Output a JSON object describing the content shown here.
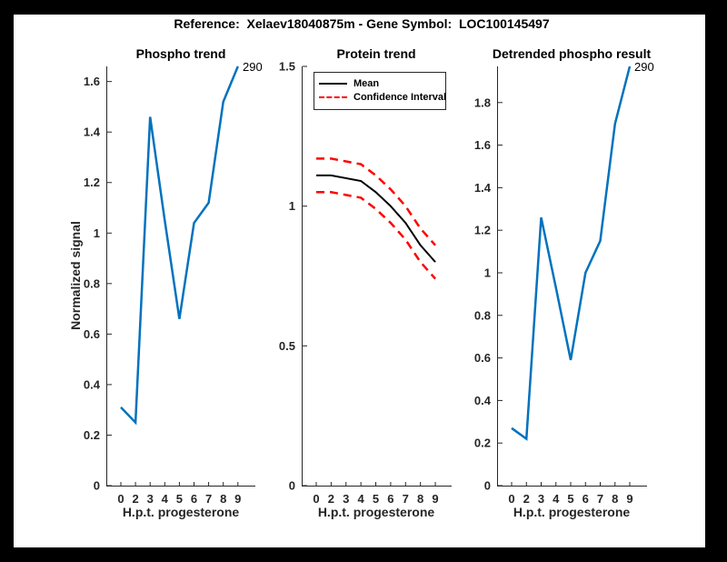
{
  "figure": {
    "title": "Reference:  Xelaev18040875m - Gene Symbol:  LOC100145497"
  },
  "colors": {
    "line_blue": "#0072BD",
    "mean_black": "#000000",
    "ci_red": "#FF0000",
    "axis": "#262626",
    "figure_bg": "#FFFFFF",
    "page_bg": "#000000"
  },
  "chart_data": [
    {
      "type": "line",
      "title": "Phospho trend",
      "xlabel": "H.p.t. progesterone",
      "ylabel": "Normalized signal",
      "x_tick_labels": [
        "0",
        "2",
        "3",
        "4",
        "5",
        "6",
        "7",
        "8",
        "9"
      ],
      "y_tick_values": [
        0,
        0.2,
        0.4,
        0.6,
        0.8,
        1,
        1.2,
        1.4,
        1.6
      ],
      "y_tick_labels": [
        "0",
        "0.2",
        "0.4",
        "0.6",
        "0.8",
        "1",
        "1.2",
        "1.4",
        "1.6"
      ],
      "ylim": [
        0,
        1.66
      ],
      "grid": false,
      "legend": null,
      "end_annotation": "290",
      "series": [
        {
          "name": "phospho-signal",
          "color": "#0072BD",
          "style": "solid",
          "values": [
            0.31,
            0.25,
            1.46,
            1.05,
            0.66,
            1.04,
            1.12,
            1.52,
            1.66
          ]
        }
      ]
    },
    {
      "type": "line",
      "title": "Protein trend",
      "xlabel": "H.p.t. progesterone",
      "ylabel": "",
      "x_tick_labels": [
        "0",
        "2",
        "3",
        "4",
        "5",
        "6",
        "7",
        "8",
        "9"
      ],
      "y_tick_values": [
        0,
        0.5,
        1,
        1.5
      ],
      "y_tick_labels": [
        "0",
        "0.5",
        "1",
        "1.5"
      ],
      "ylim": [
        0,
        1.5
      ],
      "grid": false,
      "legend": {
        "position": "northwest",
        "entries": [
          {
            "label": "Mean",
            "color": "#000000",
            "style": "solid"
          },
          {
            "label": "Confidence Interval",
            "color": "#FF0000",
            "style": "dashed"
          }
        ]
      },
      "end_annotation": null,
      "series": [
        {
          "name": "mean",
          "color": "#000000",
          "style": "solid",
          "values": [
            1.11,
            1.11,
            1.1,
            1.09,
            1.05,
            1.0,
            0.94,
            0.86,
            0.8
          ]
        },
        {
          "name": "confidence-interval-upper",
          "color": "#FF0000",
          "style": "dashed",
          "values": [
            1.17,
            1.17,
            1.16,
            1.15,
            1.11,
            1.06,
            1.0,
            0.92,
            0.86
          ]
        },
        {
          "name": "confidence-interval-lower",
          "color": "#FF0000",
          "style": "dashed",
          "values": [
            1.05,
            1.05,
            1.04,
            1.03,
            0.99,
            0.94,
            0.88,
            0.8,
            0.74
          ]
        }
      ]
    },
    {
      "type": "line",
      "title": "Detrended phospho result",
      "xlabel": "H.p.t. progesterone",
      "ylabel": "",
      "x_tick_labels": [
        "0",
        "2",
        "3",
        "4",
        "5",
        "6",
        "7",
        "8",
        "9"
      ],
      "y_tick_values": [
        0,
        0.2,
        0.4,
        0.6,
        0.8,
        1,
        1.2,
        1.4,
        1.6,
        1.8
      ],
      "y_tick_labels": [
        "0",
        "0.2",
        "0.4",
        "0.6",
        "0.8",
        "1",
        "1.2",
        "1.4",
        "1.6",
        "1.8"
      ],
      "ylim": [
        0,
        1.97
      ],
      "grid": false,
      "legend": null,
      "end_annotation": "290",
      "series": [
        {
          "name": "detrended-phospho",
          "color": "#0072BD",
          "style": "solid",
          "values": [
            0.27,
            0.22,
            1.26,
            0.93,
            0.59,
            1.0,
            1.15,
            1.7,
            1.97
          ]
        }
      ]
    }
  ]
}
